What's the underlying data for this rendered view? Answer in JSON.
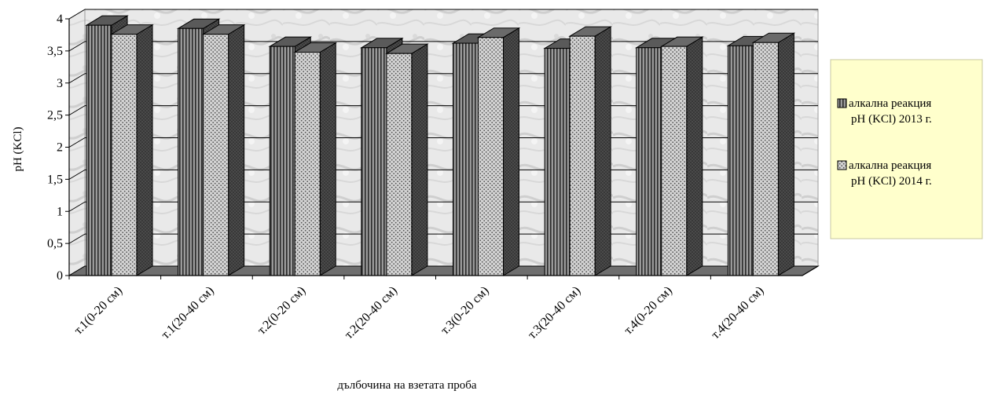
{
  "chart_data": {
    "type": "bar",
    "categories": [
      "т.1(0-20 см)",
      "т.1(20-40 см)",
      "т.2(0-20 см)",
      "т.2(20-40 см)",
      "т.3(0-20 см)",
      "т.3(20-40 см)",
      "т.4(0-20 см)",
      "т.4(20-40 см)"
    ],
    "series": [
      {
        "name_lines": [
          "алкална реакция",
          "pH (KCl) 2013 г."
        ],
        "values": [
          3.9,
          3.85,
          3.57,
          3.55,
          3.62,
          3.54,
          3.55,
          3.58
        ],
        "color": "#8c8c8c"
      },
      {
        "name_lines": [
          "алкална реакция",
          "pH (KCl) 2014 г."
        ],
        "values": [
          3.76,
          3.76,
          3.48,
          3.46,
          3.71,
          3.73,
          3.57,
          3.63
        ],
        "color": "#c8c8c8"
      }
    ],
    "y_ticks": [
      "0",
      "0,5",
      "1",
      "1,5",
      "2",
      "2,5",
      "3",
      "3,5",
      "4"
    ],
    "ylim": [
      0,
      4
    ],
    "xlabel": "дълбочина на взетата проба",
    "ylabel": "pH (KCl)",
    "legend_position": "right",
    "grid": true
  }
}
